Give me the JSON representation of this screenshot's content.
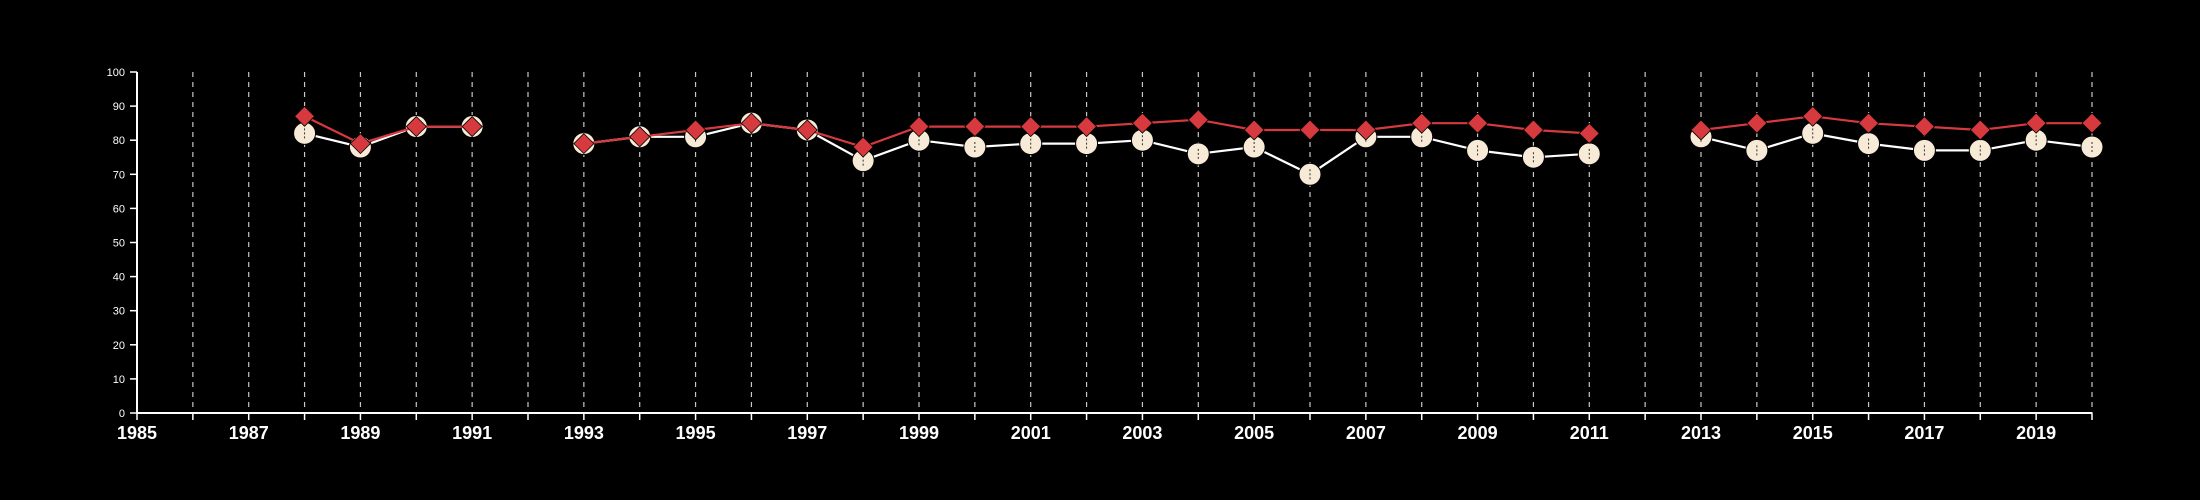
{
  "chart_data": {
    "type": "line",
    "title": "",
    "xlabel": "",
    "ylabel": "",
    "xlim": [
      1985,
      2020
    ],
    "ylim": [
      0,
      100
    ],
    "x_ticks": [
      "1985",
      "1987",
      "1989",
      "1991",
      "1993",
      "1995",
      "1997",
      "1999",
      "2001",
      "2003",
      "2005",
      "2007",
      "2009",
      "2011",
      "2013",
      "2015",
      "2017",
      "2019"
    ],
    "y_ticks": [
      "0",
      "10",
      "20",
      "30",
      "40",
      "50",
      "60",
      "70",
      "80",
      "90",
      "100"
    ],
    "grid": "vertical dashed lines at every year",
    "legend": "none",
    "series": [
      {
        "marker": "circle",
        "color": "#f7ead6",
        "line_color": "#ffffff",
        "points": [
          [
            1988,
            82
          ],
          [
            1989,
            78
          ],
          [
            1990,
            84
          ],
          [
            1991,
            84
          ],
          [
            1993,
            79
          ],
          [
            1994,
            81
          ],
          [
            1995,
            81
          ],
          [
            1996,
            85
          ],
          [
            1997,
            83
          ],
          [
            1998,
            74
          ],
          [
            1999,
            80
          ],
          [
            2000,
            78
          ],
          [
            2001,
            79
          ],
          [
            2002,
            79
          ],
          [
            2003,
            80
          ],
          [
            2004,
            76
          ],
          [
            2005,
            78
          ],
          [
            2006,
            70
          ],
          [
            2007,
            81
          ],
          [
            2008,
            81
          ],
          [
            2009,
            77
          ],
          [
            2010,
            75
          ],
          [
            2011,
            76
          ],
          [
            2013,
            81
          ],
          [
            2014,
            77
          ],
          [
            2015,
            82
          ],
          [
            2016,
            79
          ],
          [
            2017,
            77
          ],
          [
            2018,
            77
          ],
          [
            2019,
            80
          ],
          [
            2020,
            78
          ]
        ]
      },
      {
        "marker": "diamond",
        "color": "#d63a3f",
        "line_color": "#d63a3f",
        "points": [
          [
            1988,
            87
          ],
          [
            1989,
            79
          ],
          [
            1990,
            84
          ],
          [
            1991,
            84
          ],
          [
            1993,
            79
          ],
          [
            1994,
            81
          ],
          [
            1995,
            83
          ],
          [
            1996,
            85
          ],
          [
            1997,
            83
          ],
          [
            1998,
            78
          ],
          [
            1999,
            84
          ],
          [
            2000,
            84
          ],
          [
            2001,
            84
          ],
          [
            2002,
            84
          ],
          [
            2003,
            85
          ],
          [
            2004,
            86
          ],
          [
            2005,
            83
          ],
          [
            2006,
            83
          ],
          [
            2007,
            83
          ],
          [
            2008,
            85
          ],
          [
            2009,
            85
          ],
          [
            2010,
            83
          ],
          [
            2011,
            82
          ],
          [
            2013,
            83
          ],
          [
            2014,
            85
          ],
          [
            2015,
            87
          ],
          [
            2016,
            85
          ],
          [
            2017,
            84
          ],
          [
            2018,
            83
          ],
          [
            2019,
            85
          ],
          [
            2020,
            85
          ]
        ]
      }
    ]
  }
}
